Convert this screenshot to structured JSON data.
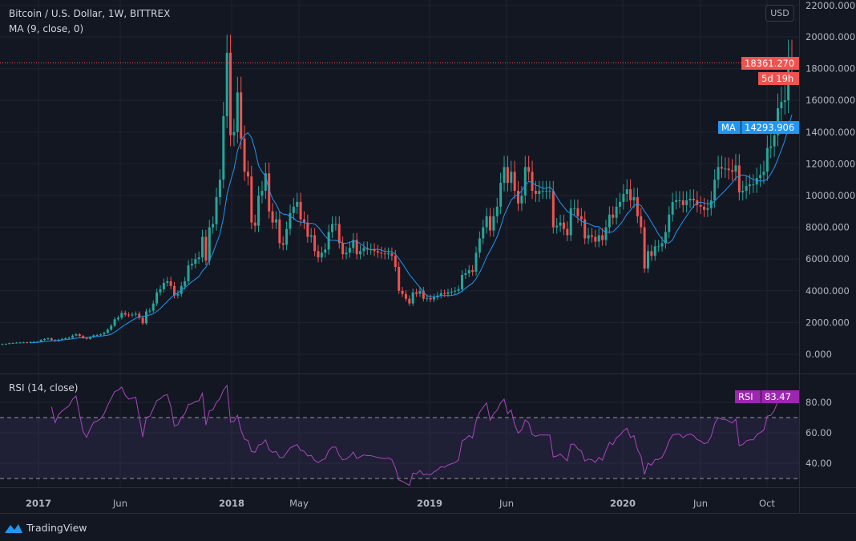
{
  "header": {
    "title": "Bitcoin / U.S. Dollar, 1W, BITTREX",
    "indicator": "MA (9, close, 0)",
    "rsi_indicator": "RSI (14, close)",
    "currency": "USD"
  },
  "labels": {
    "last_price": "18361.270",
    "countdown": "5d 19h",
    "ma_name": "MA",
    "ma_value": "14293.906",
    "rsi_name": "RSI",
    "rsi_value": "83.47"
  },
  "colors": {
    "up": "#26a69a",
    "down": "#ef5350",
    "ma": "#2196f3",
    "rsi": "#ab47bc",
    "background": "#131722",
    "grid": "#1f2330"
  },
  "footer": {
    "brand": "TradingView",
    "logo_icon": "tradingview-logo-icon"
  },
  "chart_data": {
    "type": "candlestick",
    "interval": "1W",
    "price_ticks": [
      "0.000",
      "2000.000",
      "4000.000",
      "6000.000",
      "8000.000",
      "10000.000",
      "12000.000",
      "14000.000",
      "16000.000",
      "18000.000",
      "20000.000",
      "22000.000"
    ],
    "price_range": [
      0,
      22000
    ],
    "rsi_ticks": [
      "40.00",
      "60.00",
      "80.00"
    ],
    "rsi_levels": [
      30,
      70
    ],
    "time_ticks": [
      "2017",
      "Jun",
      "2018",
      "May",
      "2019",
      "Jun",
      "2020",
      "Jun",
      "Oct"
    ],
    "grid": true,
    "closes": [
      640,
      650,
      700,
      710,
      730,
      740,
      750,
      740,
      770,
      780,
      790,
      900,
      960,
      1000,
      900,
      830,
      920,
      970,
      1010,
      1050,
      1180,
      1260,
      1150,
      1020,
      970,
      1080,
      1190,
      1210,
      1250,
      1350,
      1550,
      1800,
      2200,
      2300,
      2600,
      2500,
      2450,
      2500,
      2550,
      2300,
      1950,
      2700,
      2750,
      3200,
      3900,
      4100,
      4500,
      4600,
      4300,
      3700,
      3800,
      4300,
      4600,
      5600,
      5700,
      6000,
      6100,
      7400,
      5900,
      8000,
      8200,
      9900,
      11000,
      15000,
      19000,
      13800,
      14000,
      16500,
      13600,
      11500,
      11200,
      8300,
      8100,
      10000,
      10300,
      11400,
      9000,
      8300,
      8500,
      7000,
      6900,
      7900,
      8900,
      9300,
      9600,
      8500,
      8300,
      7400,
      7500,
      6500,
      6100,
      6400,
      6600,
      7700,
      8200,
      8200,
      7000,
      6300,
      6400,
      6700,
      7200,
      6300,
      6500,
      6700,
      6600,
      6600,
      6500,
      6400,
      6350,
      6300,
      6350,
      6200,
      5500,
      4000,
      3800,
      3500,
      3200,
      3900,
      3800,
      4000,
      3500,
      3550,
      3450,
      3600,
      3700,
      3850,
      3800,
      3900,
      3950,
      4000,
      4100,
      5000,
      5100,
      5300,
      5200,
      6400,
      7300,
      8000,
      8700,
      7800,
      8700,
      9300,
      10800,
      11800,
      10800,
      11500,
      10300,
      9500,
      10000,
      11800,
      11500,
      10300,
      10100,
      10300,
      10300,
      10300,
      10300,
      8000,
      8100,
      8300,
      7900,
      7500,
      9200,
      9200,
      8700,
      8500,
      7300,
      7500,
      7400,
      7100,
      7500,
      7200,
      8000,
      8800,
      8600,
      9300,
      9600,
      10100,
      10400,
      9700,
      9900,
      8700,
      8000,
      5400,
      6500,
      6200,
      6800,
      6800,
      7000,
      7700,
      8800,
      9600,
      9700,
      9700,
      9400,
      9700,
      9800,
      9700,
      9400,
      9300,
      9100,
      9200,
      9700,
      11000,
      11800,
      11700,
      11700,
      11600,
      11500,
      11900,
      10200,
      10300,
      10600,
      10700,
      10700,
      11100,
      11300,
      11500,
      13000,
      13100,
      13800,
      15500,
      15900,
      16000,
      18700,
      18361.27
    ],
    "last_price": 18361.27,
    "ma_last": 14293.906,
    "rsi_last": 83.47
  }
}
